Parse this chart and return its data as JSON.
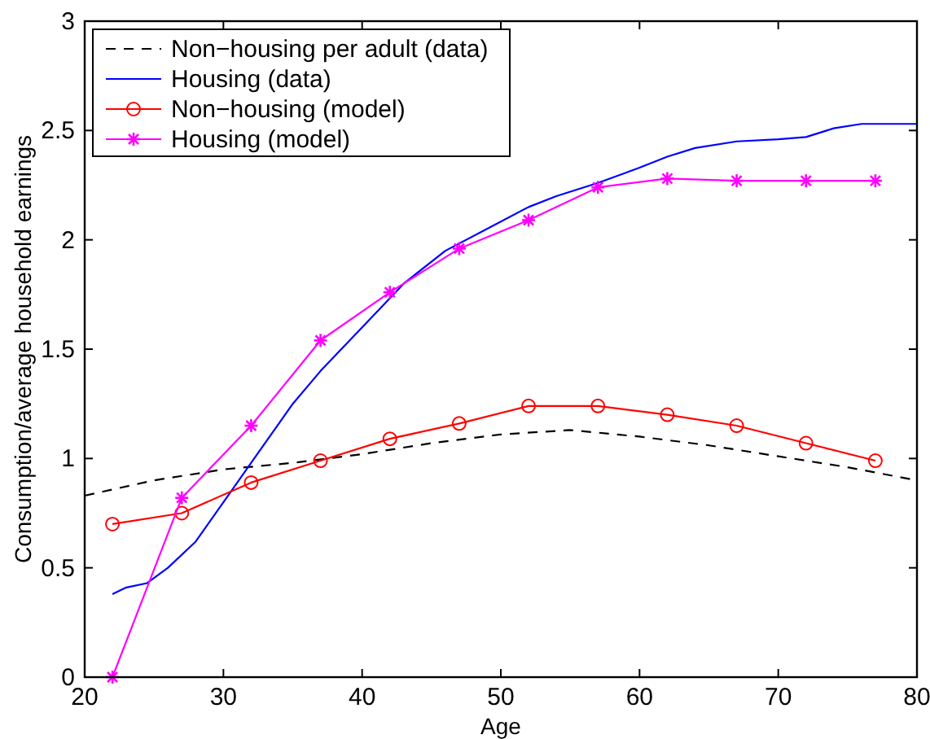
{
  "chart_data": {
    "type": "line",
    "xlabel": "Age",
    "ylabel": "Consumption/average household earnings",
    "xlim": [
      20,
      80
    ],
    "ylim": [
      0,
      3
    ],
    "xticks": [
      20,
      30,
      40,
      50,
      60,
      70,
      80
    ],
    "yticks": [
      0,
      0.5,
      1,
      1.5,
      2,
      2.5,
      3
    ],
    "grid": false,
    "legend": "top left",
    "series": [
      {
        "name": "Non−housing per adult (data)",
        "color": "#000000",
        "line_style": "dashed",
        "marker": "none",
        "x": [
          20,
          25,
          30,
          35,
          40,
          45,
          50,
          55,
          60,
          65,
          70,
          75,
          80
        ],
        "values": [
          0.83,
          0.9,
          0.95,
          0.98,
          1.02,
          1.07,
          1.11,
          1.13,
          1.1,
          1.06,
          1.01,
          0.96,
          0.9
        ]
      },
      {
        "name": "Housing (data)",
        "color": "#0000ff",
        "line_style": "solid",
        "marker": "none",
        "x": [
          22,
          23,
          24.5,
          26,
          28,
          30,
          32,
          35,
          37,
          40,
          43,
          46,
          49,
          52,
          54,
          57,
          60,
          62,
          64,
          67,
          70,
          72,
          74,
          76,
          80
        ],
        "values": [
          0.38,
          0.41,
          0.43,
          0.5,
          0.62,
          0.8,
          0.98,
          1.25,
          1.4,
          1.6,
          1.8,
          1.95,
          2.05,
          2.15,
          2.2,
          2.26,
          2.33,
          2.38,
          2.42,
          2.45,
          2.46,
          2.47,
          2.51,
          2.53,
          2.53
        ]
      },
      {
        "name": "Non−housing (model)",
        "color": "#ff0000",
        "line_style": "solid",
        "marker": "circle",
        "x": [
          22,
          27,
          32,
          37,
          42,
          47,
          52,
          57,
          62,
          67,
          72,
          77
        ],
        "values": [
          0.7,
          0.75,
          0.89,
          0.99,
          1.09,
          1.16,
          1.24,
          1.24,
          1.2,
          1.15,
          1.07,
          0.99
        ]
      },
      {
        "name": "Housing (model)",
        "color": "#ff00ff",
        "line_style": "solid",
        "marker": "cross",
        "x": [
          22,
          27,
          32,
          37,
          42,
          47,
          52,
          57,
          62,
          67,
          72,
          77
        ],
        "values": [
          0,
          0.82,
          1.15,
          1.54,
          1.76,
          1.96,
          2.09,
          2.24,
          2.28,
          2.27,
          2.27,
          2.27
        ]
      }
    ]
  }
}
